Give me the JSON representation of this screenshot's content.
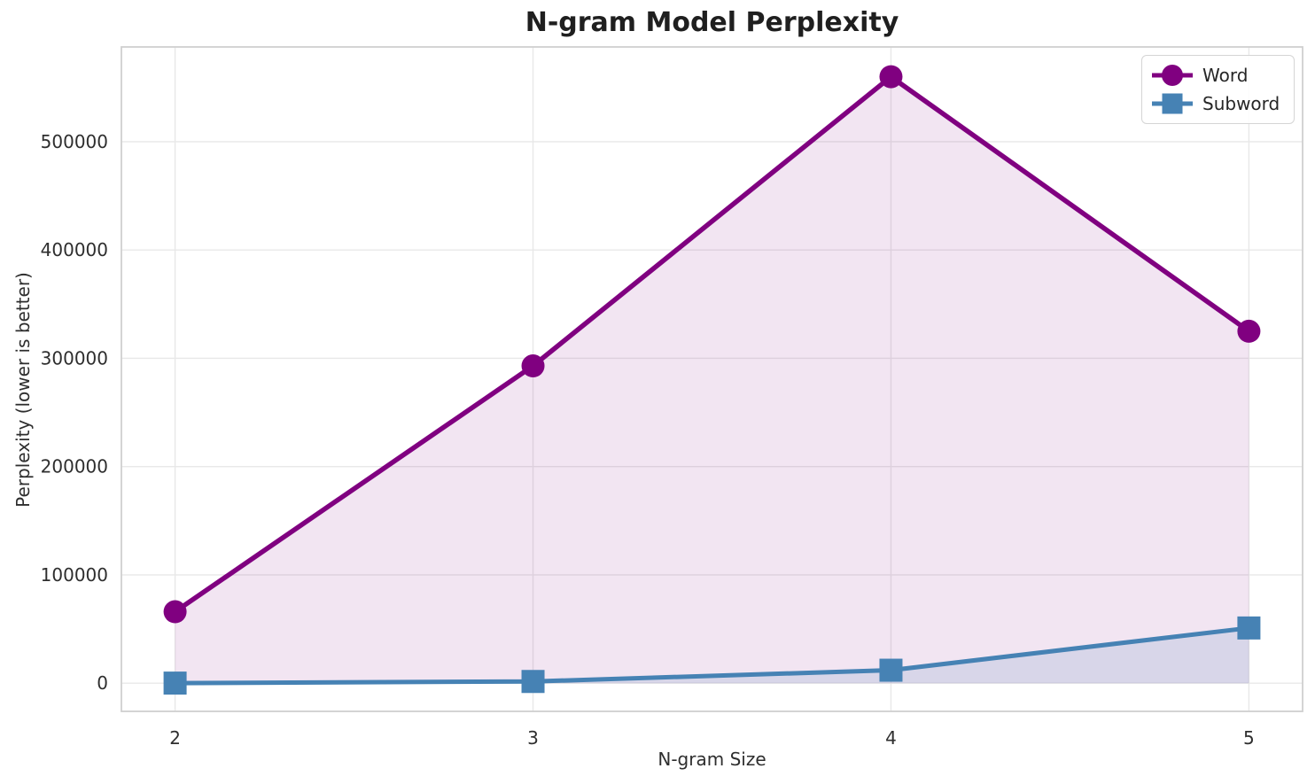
{
  "title": "N-gram Model Perplexity",
  "chart_data": {
    "type": "line",
    "title": "N-gram Model Perplexity",
    "xlabel": "N-gram Size",
    "ylabel": "Perplexity (lower is better)",
    "x": [
      2,
      3,
      4,
      5
    ],
    "x_tick_labels": [
      "2",
      "3",
      "4",
      "5"
    ],
    "y_ticks": [
      0,
      100000,
      200000,
      300000,
      400000,
      500000
    ],
    "xlim": [
      1.85,
      5.15
    ],
    "ylim": [
      -26000,
      587500
    ],
    "grid": true,
    "grid_color": "#e8e8e8",
    "fill_baseline": 0,
    "legend_position": "upper right",
    "series": [
      {
        "name": "Word",
        "values": [
          66000,
          293000,
          560000,
          325000
        ],
        "color": "#800080",
        "marker": "circle",
        "fill_alpha": 0.1
      },
      {
        "name": "Subword",
        "values": [
          100,
          1600,
          12000,
          51000
        ],
        "color": "#4682B4",
        "marker": "square",
        "fill_alpha": 0.15
      }
    ]
  }
}
